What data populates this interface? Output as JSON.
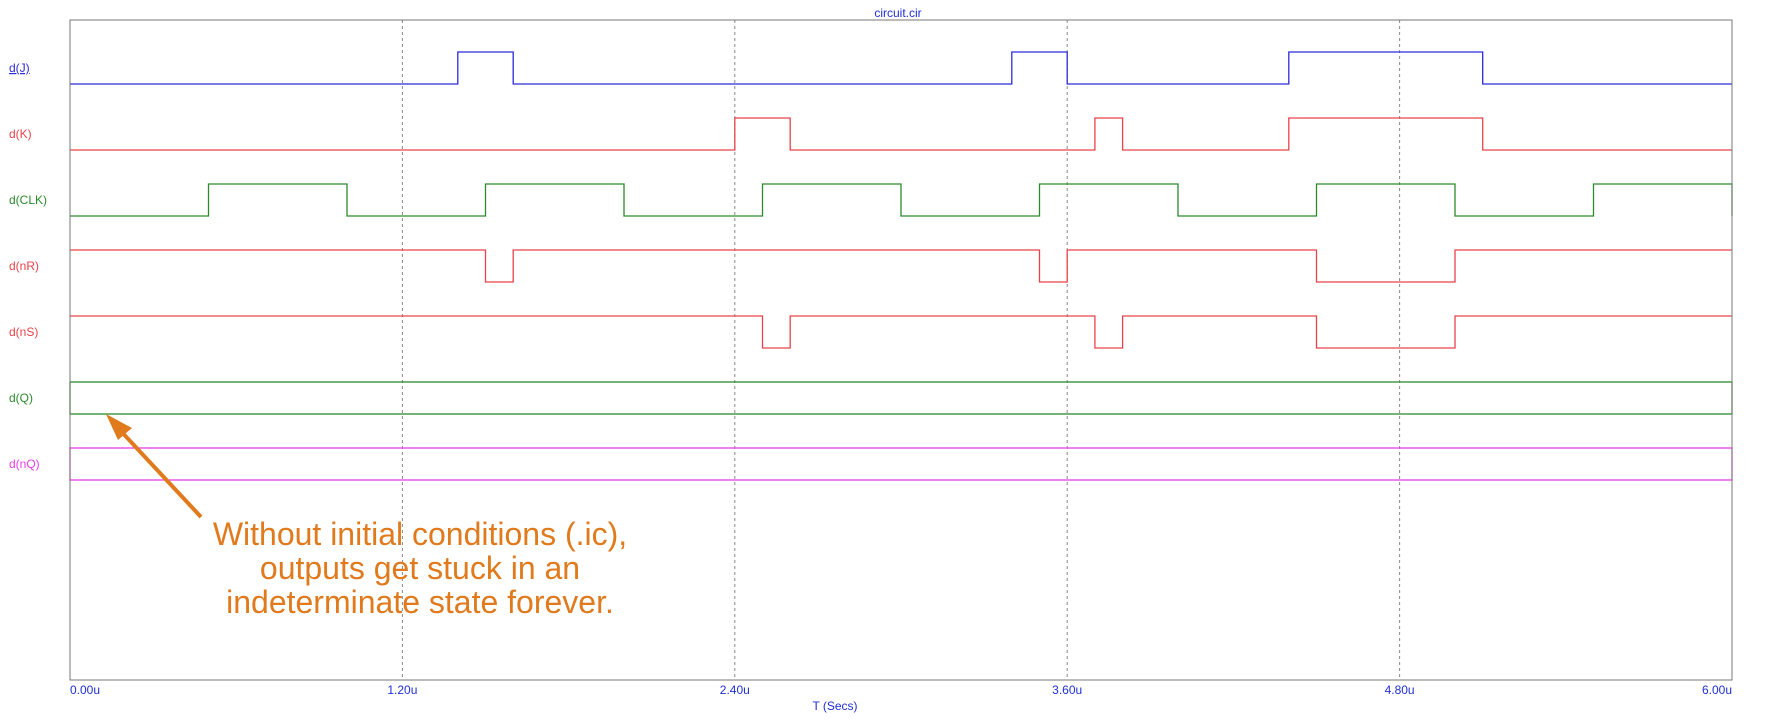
{
  "chart_data": {
    "type": "line",
    "title": "circuit.cir",
    "xlabel": "T (Secs)",
    "ylabel": "",
    "xlim": [
      0,
      6.0
    ],
    "x_unit": "u",
    "x_ticks": [
      0.0,
      1.2,
      2.4,
      3.6,
      4.8,
      6.0
    ],
    "x_tick_labels": [
      "0.00u",
      "1.20u",
      "2.40u",
      "3.60u",
      "4.80u",
      "6.00u"
    ],
    "grid": "vertical-dashed",
    "series": [
      {
        "name": "d(J)",
        "color": "#2b2bd9",
        "kind": "digital",
        "steps": [
          [
            0,
            0
          ],
          [
            1.4,
            1
          ],
          [
            1.6,
            0
          ],
          [
            3.4,
            1
          ],
          [
            3.6,
            0
          ],
          [
            4.4,
            1
          ],
          [
            5.1,
            0
          ],
          [
            6.0,
            0
          ]
        ]
      },
      {
        "name": "d(K)",
        "color": "#e8434a",
        "kind": "digital",
        "steps": [
          [
            0,
            0
          ],
          [
            2.4,
            1
          ],
          [
            2.6,
            0
          ],
          [
            3.7,
            1
          ],
          [
            3.8,
            0
          ],
          [
            4.4,
            1
          ],
          [
            5.1,
            0
          ],
          [
            6.0,
            0
          ]
        ]
      },
      {
        "name": "d(CLK)",
        "color": "#2c8a2c",
        "kind": "digital",
        "steps": [
          [
            0,
            0
          ],
          [
            0.5,
            1
          ],
          [
            1.0,
            0
          ],
          [
            1.5,
            1
          ],
          [
            2.0,
            0
          ],
          [
            2.5,
            1
          ],
          [
            3.0,
            0
          ],
          [
            3.5,
            1
          ],
          [
            4.0,
            0
          ],
          [
            4.5,
            1
          ],
          [
            5.0,
            0
          ],
          [
            5.5,
            1
          ],
          [
            6.0,
            0
          ]
        ]
      },
      {
        "name": "d(nR)",
        "color": "#e8434a",
        "kind": "digital",
        "steps": [
          [
            0,
            1
          ],
          [
            1.5,
            0
          ],
          [
            1.6,
            1
          ],
          [
            3.5,
            0
          ],
          [
            3.6,
            1
          ],
          [
            4.5,
            0
          ],
          [
            5.0,
            1
          ],
          [
            6.0,
            1
          ]
        ]
      },
      {
        "name": "d(nS)",
        "color": "#e8434a",
        "kind": "digital",
        "steps": [
          [
            0,
            1
          ],
          [
            2.5,
            0
          ],
          [
            2.6,
            1
          ],
          [
            3.7,
            0
          ],
          [
            3.8,
            1
          ],
          [
            4.5,
            0
          ],
          [
            5.0,
            1
          ],
          [
            6.0,
            1
          ]
        ]
      },
      {
        "name": "d(Q)",
        "color": "#2c8a2c",
        "kind": "unknown",
        "steps": [
          [
            0,
            "X"
          ],
          [
            6.0,
            "X"
          ]
        ]
      },
      {
        "name": "d(nQ)",
        "color": "#e83fe8",
        "kind": "unknown",
        "steps": [
          [
            0,
            "X"
          ],
          [
            6.0,
            "X"
          ]
        ]
      }
    ],
    "annotations": [
      {
        "lines": [
          "Without initial conditions (.ic),",
          "outputs get stuck in an",
          "indeterminate state forever."
        ],
        "color": "#e07a1c",
        "arrow_to": [
          0.1,
          "d(Q)"
        ]
      }
    ]
  },
  "colors": {
    "axis": "#1f2fd6",
    "frame": "#777777",
    "grid": "#888888",
    "note": "#e07a1c"
  }
}
